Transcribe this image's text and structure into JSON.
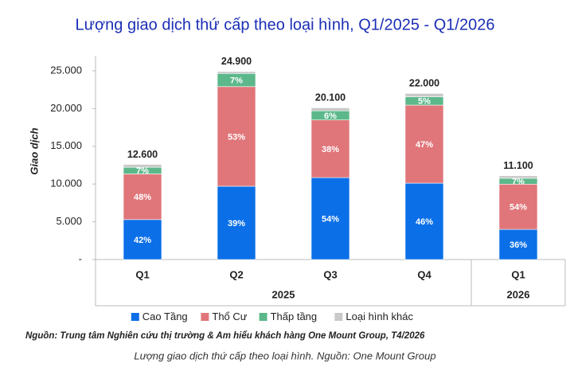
{
  "chart_data": {
    "type": "stacked-bar",
    "title": "Lượng giao dịch thứ cấp theo loại hình, Q1/2025 - Q1/2026",
    "ylabel": "Giao dịch",
    "groups": [
      {
        "name": "2025",
        "categories": [
          "Q1",
          "Q2",
          "Q3",
          "Q4"
        ]
      },
      {
        "name": "2026",
        "categories": [
          "Q1"
        ]
      }
    ],
    "series": [
      {
        "name": "Cao Tầng",
        "color": "#0b6fe8",
        "values": [
          5292,
          9711,
          10854,
          10120,
          3996
        ],
        "value_labels": [
          "42%",
          "39%",
          "54%",
          "46%",
          "36%"
        ]
      },
      {
        "name": "Thổ Cư",
        "color": "#e0767a",
        "values": [
          6048,
          13197,
          7638,
          10340,
          5994
        ],
        "value_labels": [
          "48%",
          "53%",
          "38%",
          "47%",
          "54%"
        ]
      },
      {
        "name": "Thấp tầng",
        "color": "#5cb88a",
        "values": [
          882,
          1743,
          1206,
          1100,
          777
        ],
        "value_labels": [
          "7%",
          "7%",
          "6%",
          "5%",
          "7%"
        ]
      },
      {
        "name": "Loại hình khác",
        "color": "#c9c9c9",
        "values": [
          378,
          249,
          402,
          440,
          333
        ]
      }
    ],
    "totals": {
      "values": [
        12600,
        24900,
        20100,
        22000,
        11100
      ],
      "value_labels": [
        "12.600",
        "24.900",
        "20.100",
        "22.000",
        "11.100"
      ]
    },
    "ylim": [
      0,
      27000
    ],
    "yticks": [
      {
        "value": 0,
        "label": "-"
      },
      {
        "value": 5000,
        "label": "5.000"
      },
      {
        "value": 10000,
        "label": "10.000"
      },
      {
        "value": 15000,
        "label": "15.000"
      },
      {
        "value": 20000,
        "label": "20.000"
      },
      {
        "value": 25000,
        "label": "25.000"
      }
    ],
    "legend": "bottom",
    "source": "Nguồn: Trung tâm Nghiên cứu thị trường & Am hiểu khách hàng One Mount Group, T4/2026"
  },
  "caption": "Lượng giao dịch thứ cấp theo loại hình. Nguồn: One Mount Group"
}
